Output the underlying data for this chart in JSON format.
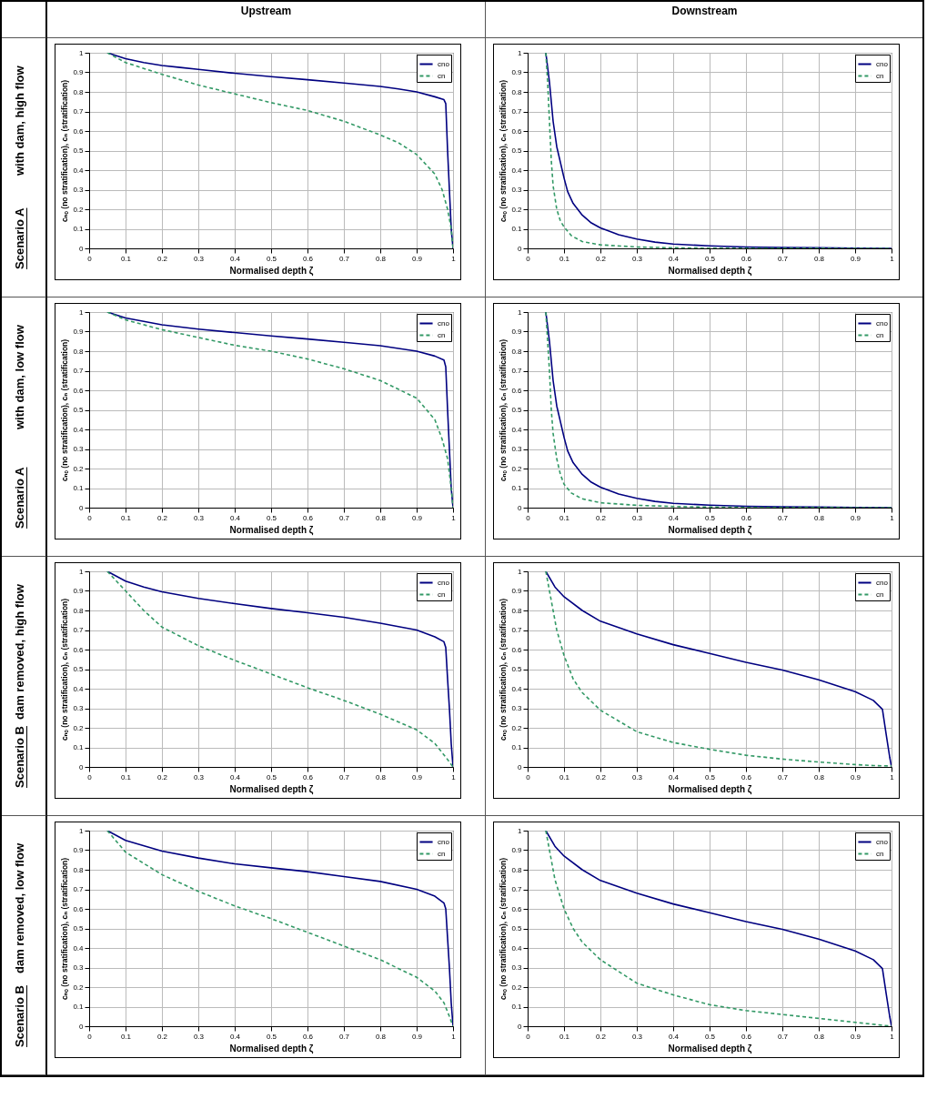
{
  "chart_data": [
    {
      "type": "line",
      "title": "Upstream",
      "annotations": [
        "Scenario A",
        "with dam, high flow"
      ],
      "xlabel": "Normalised depth ζ",
      "ylabel": "cₙₒ (no stratification), cₙ (stratification)",
      "xlim": [
        0,
        1
      ],
      "ylim": [
        0,
        1
      ],
      "xticks": [
        0,
        0.1,
        0.2,
        0.3,
        0.4,
        0.5,
        0.6,
        0.7,
        0.8,
        0.9,
        1
      ],
      "yticks": [
        0,
        0.1,
        0.2,
        0.3,
        0.4,
        0.5,
        0.6,
        0.7,
        0.8,
        0.9,
        1
      ],
      "grid": true,
      "legend": "top right",
      "series": [
        {
          "name": "cno",
          "color": "#000080",
          "line_style": "solid",
          "x": [
            0.05,
            0.1,
            0.15,
            0.2,
            0.25,
            0.3,
            0.4,
            0.5,
            0.6,
            0.7,
            0.8,
            0.85,
            0.9,
            0.95,
            0.975,
            0.98,
            0.985,
            0.99,
            0.995,
            1
          ],
          "values": [
            1,
            0.97,
            0.95,
            0.935,
            0.925,
            0.915,
            0.895,
            0.878,
            0.862,
            0.845,
            0.828,
            0.815,
            0.8,
            0.775,
            0.76,
            0.74,
            0.5,
            0.3,
            0.1,
            0
          ]
        },
        {
          "name": "cn",
          "color": "#339966",
          "line_style": "dashed",
          "x": [
            0.05,
            0.1,
            0.2,
            0.3,
            0.4,
            0.5,
            0.6,
            0.7,
            0.8,
            0.85,
            0.9,
            0.95,
            0.97,
            0.985,
            0.995,
            1
          ],
          "values": [
            1,
            0.95,
            0.89,
            0.835,
            0.79,
            0.745,
            0.705,
            0.65,
            0.58,
            0.54,
            0.48,
            0.38,
            0.3,
            0.2,
            0.1,
            0
          ]
        }
      ]
    },
    {
      "type": "line",
      "title": "Downstream",
      "xlabel": "Normalised depth ζ",
      "ylabel": "cₙₒ (no stratification), cₙ (stratification)",
      "xlim": [
        0,
        1
      ],
      "ylim": [
        0,
        1
      ],
      "xticks": [
        0,
        0.1,
        0.2,
        0.3,
        0.4,
        0.5,
        0.6,
        0.7,
        0.8,
        0.9,
        1
      ],
      "yticks": [
        0,
        0.1,
        0.2,
        0.3,
        0.4,
        0.5,
        0.6,
        0.7,
        0.8,
        0.9,
        1
      ],
      "grid": true,
      "legend": "top right",
      "series": [
        {
          "name": "cno",
          "color": "#000080",
          "line_style": "solid",
          "x": [
            0.05,
            0.06,
            0.07,
            0.08,
            0.09,
            0.1,
            0.11,
            0.125,
            0.15,
            0.175,
            0.2,
            0.25,
            0.3,
            0.35,
            0.4,
            0.5,
            0.6,
            0.7,
            0.8,
            0.9,
            1
          ],
          "values": [
            1,
            0.85,
            0.65,
            0.52,
            0.44,
            0.36,
            0.29,
            0.23,
            0.17,
            0.13,
            0.105,
            0.07,
            0.048,
            0.032,
            0.022,
            0.013,
            0.007,
            0.004,
            0.003,
            0.001,
            0
          ]
        },
        {
          "name": "cn",
          "color": "#339966",
          "line_style": "dashed",
          "x": [
            0.05,
            0.055,
            0.06,
            0.065,
            0.07,
            0.08,
            0.09,
            0.1,
            0.12,
            0.15,
            0.2,
            0.3,
            0.4,
            0.5,
            1
          ],
          "values": [
            1,
            0.85,
            0.65,
            0.45,
            0.32,
            0.2,
            0.14,
            0.11,
            0.065,
            0.035,
            0.018,
            0.007,
            0.003,
            0.001,
            0
          ]
        }
      ]
    },
    {
      "type": "line",
      "annotations": [
        "Scenario A",
        "with dam, low flow"
      ],
      "xlabel": "Normalised depth ζ",
      "ylabel": "cₙₒ (no stratification), cₙ (stratification)",
      "xlim": [
        0,
        1
      ],
      "ylim": [
        0,
        1
      ],
      "xticks": [
        0,
        0.1,
        0.2,
        0.3,
        0.4,
        0.5,
        0.6,
        0.7,
        0.8,
        0.9,
        1
      ],
      "yticks": [
        0,
        0.1,
        0.2,
        0.3,
        0.4,
        0.5,
        0.6,
        0.7,
        0.8,
        0.9,
        1
      ],
      "grid": true,
      "legend": "top right",
      "series": [
        {
          "name": "cno",
          "color": "#000080",
          "line_style": "solid",
          "x": [
            0.05,
            0.1,
            0.2,
            0.3,
            0.4,
            0.5,
            0.6,
            0.7,
            0.8,
            0.9,
            0.95,
            0.975,
            0.98,
            0.985,
            0.99,
            0.995,
            1
          ],
          "values": [
            1,
            0.97,
            0.935,
            0.913,
            0.895,
            0.878,
            0.862,
            0.845,
            0.828,
            0.8,
            0.775,
            0.755,
            0.72,
            0.5,
            0.3,
            0.1,
            0
          ]
        },
        {
          "name": "cn",
          "color": "#339966",
          "line_style": "dashed",
          "x": [
            0.05,
            0.1,
            0.2,
            0.3,
            0.4,
            0.5,
            0.6,
            0.7,
            0.8,
            0.9,
            0.95,
            0.97,
            0.985,
            0.995,
            1
          ],
          "values": [
            1,
            0.96,
            0.91,
            0.87,
            0.83,
            0.8,
            0.76,
            0.71,
            0.65,
            0.56,
            0.45,
            0.35,
            0.25,
            0.1,
            0
          ]
        }
      ]
    },
    {
      "type": "line",
      "xlabel": "Normalised depth ζ",
      "ylabel": "cₙₒ (no stratification), cₙ (stratification)",
      "xlim": [
        0,
        1
      ],
      "ylim": [
        0,
        1
      ],
      "xticks": [
        0,
        0.1,
        0.2,
        0.3,
        0.4,
        0.5,
        0.6,
        0.7,
        0.8,
        0.9,
        1
      ],
      "yticks": [
        0,
        0.1,
        0.2,
        0.3,
        0.4,
        0.5,
        0.6,
        0.7,
        0.8,
        0.9,
        1
      ],
      "grid": true,
      "legend": "top right",
      "series": [
        {
          "name": "cno",
          "color": "#000080",
          "line_style": "solid",
          "x": [
            0.05,
            0.06,
            0.07,
            0.08,
            0.09,
            0.1,
            0.11,
            0.125,
            0.15,
            0.175,
            0.2,
            0.25,
            0.3,
            0.35,
            0.4,
            0.5,
            0.6,
            0.7,
            0.8,
            0.9,
            1
          ],
          "values": [
            1,
            0.85,
            0.65,
            0.52,
            0.44,
            0.36,
            0.29,
            0.23,
            0.17,
            0.13,
            0.105,
            0.07,
            0.048,
            0.032,
            0.022,
            0.013,
            0.007,
            0.004,
            0.003,
            0.001,
            0
          ]
        },
        {
          "name": "cn",
          "color": "#339966",
          "line_style": "dashed",
          "x": [
            0.05,
            0.055,
            0.06,
            0.065,
            0.07,
            0.08,
            0.09,
            0.1,
            0.12,
            0.15,
            0.2,
            0.3,
            0.4,
            0.5,
            0.6,
            1
          ],
          "values": [
            1,
            0.85,
            0.7,
            0.5,
            0.38,
            0.25,
            0.17,
            0.12,
            0.075,
            0.045,
            0.025,
            0.012,
            0.006,
            0.003,
            0.001,
            0
          ]
        }
      ]
    },
    {
      "type": "line",
      "annotations": [
        "Scenario B",
        "dam removed, high flow"
      ],
      "xlabel": "Normalised depth ζ",
      "ylabel": "cₙₒ (no stratification), cₙ (stratification)",
      "xlim": [
        0,
        1
      ],
      "ylim": [
        0,
        1
      ],
      "xticks": [
        0,
        0.1,
        0.2,
        0.3,
        0.4,
        0.5,
        0.6,
        0.7,
        0.8,
        0.9,
        1
      ],
      "yticks": [
        0,
        0.1,
        0.2,
        0.3,
        0.4,
        0.5,
        0.6,
        0.7,
        0.8,
        0.9,
        1
      ],
      "grid": true,
      "legend": "top right",
      "series": [
        {
          "name": "cno",
          "color": "#000080",
          "line_style": "solid",
          "x": [
            0.05,
            0.1,
            0.15,
            0.2,
            0.3,
            0.4,
            0.5,
            0.6,
            0.7,
            0.8,
            0.9,
            0.95,
            0.975,
            0.98,
            0.985,
            0.99,
            0.995,
            1
          ],
          "values": [
            1,
            0.95,
            0.92,
            0.895,
            0.862,
            0.835,
            0.81,
            0.788,
            0.765,
            0.735,
            0.7,
            0.665,
            0.64,
            0.61,
            0.45,
            0.3,
            0.12,
            0
          ]
        },
        {
          "name": "cn",
          "color": "#339966",
          "line_style": "dashed",
          "x": [
            0.05,
            0.1,
            0.15,
            0.2,
            0.3,
            0.4,
            0.5,
            0.6,
            0.7,
            0.8,
            0.9,
            0.95,
            0.98,
            1
          ],
          "values": [
            1,
            0.9,
            0.8,
            0.715,
            0.62,
            0.545,
            0.475,
            0.405,
            0.34,
            0.27,
            0.19,
            0.12,
            0.05,
            0
          ]
        }
      ]
    },
    {
      "type": "line",
      "xlabel": "Normalised depth ζ",
      "ylabel": "cₙₒ (no stratification), cₙ (stratification)",
      "xlim": [
        0,
        1
      ],
      "ylim": [
        0,
        1
      ],
      "xticks": [
        0,
        0.1,
        0.2,
        0.3,
        0.4,
        0.5,
        0.6,
        0.7,
        0.8,
        0.9,
        1
      ],
      "yticks": [
        0,
        0.1,
        0.2,
        0.3,
        0.4,
        0.5,
        0.6,
        0.7,
        0.8,
        0.9,
        1
      ],
      "grid": true,
      "legend": "top right",
      "series": [
        {
          "name": "cno",
          "color": "#000080",
          "line_style": "solid",
          "x": [
            0.05,
            0.075,
            0.1,
            0.15,
            0.2,
            0.3,
            0.4,
            0.5,
            0.6,
            0.7,
            0.8,
            0.9,
            0.95,
            0.975,
            0.985,
            0.995,
            1
          ],
          "values": [
            1,
            0.92,
            0.87,
            0.8,
            0.745,
            0.68,
            0.625,
            0.58,
            0.535,
            0.495,
            0.445,
            0.385,
            0.34,
            0.295,
            0.17,
            0.05,
            0
          ]
        },
        {
          "name": "cn",
          "color": "#339966",
          "line_style": "dashed",
          "x": [
            0.05,
            0.06,
            0.07,
            0.08,
            0.1,
            0.125,
            0.15,
            0.2,
            0.3,
            0.4,
            0.5,
            0.6,
            0.7,
            0.8,
            0.9,
            0.95,
            1
          ],
          "values": [
            1,
            0.9,
            0.8,
            0.7,
            0.57,
            0.45,
            0.38,
            0.29,
            0.18,
            0.125,
            0.09,
            0.06,
            0.04,
            0.025,
            0.012,
            0.007,
            0.005
          ]
        }
      ]
    },
    {
      "type": "line",
      "annotations": [
        "Scenario B",
        "dam removed, low flow"
      ],
      "xlabel": "Normalised depth ζ",
      "ylabel": "cₙₒ (no stratification), cₙ (stratification)",
      "xlim": [
        0,
        1
      ],
      "ylim": [
        0,
        1
      ],
      "xticks": [
        0,
        0.1,
        0.2,
        0.3,
        0.4,
        0.5,
        0.6,
        0.7,
        0.8,
        0.9,
        1
      ],
      "yticks": [
        0,
        0.1,
        0.2,
        0.3,
        0.4,
        0.5,
        0.6,
        0.7,
        0.8,
        0.9,
        1
      ],
      "grid": true,
      "legend": "top right",
      "series": [
        {
          "name": "cno",
          "color": "#000080",
          "line_style": "solid",
          "x": [
            0.05,
            0.1,
            0.2,
            0.3,
            0.4,
            0.5,
            0.6,
            0.7,
            0.8,
            0.9,
            0.95,
            0.975,
            0.98,
            0.985,
            0.99,
            0.995,
            1
          ],
          "values": [
            1,
            0.95,
            0.895,
            0.86,
            0.83,
            0.81,
            0.79,
            0.765,
            0.74,
            0.7,
            0.665,
            0.63,
            0.6,
            0.45,
            0.3,
            0.12,
            0
          ]
        },
        {
          "name": "cn",
          "color": "#339966",
          "line_style": "dashed",
          "x": [
            0.05,
            0.1,
            0.2,
            0.3,
            0.4,
            0.5,
            0.6,
            0.7,
            0.8,
            0.9,
            0.95,
            0.975,
            0.99,
            1
          ],
          "values": [
            1,
            0.89,
            0.775,
            0.69,
            0.615,
            0.55,
            0.48,
            0.41,
            0.34,
            0.25,
            0.18,
            0.12,
            0.05,
            0
          ]
        }
      ]
    },
    {
      "type": "line",
      "xlabel": "Normalised depth ζ",
      "ylabel": "cₙₒ (no stratification), cₙ (stratification)",
      "xlim": [
        0,
        1
      ],
      "ylim": [
        0,
        1
      ],
      "xticks": [
        0,
        0.1,
        0.2,
        0.3,
        0.4,
        0.5,
        0.6,
        0.7,
        0.8,
        0.9,
        1
      ],
      "yticks": [
        0,
        0.1,
        0.2,
        0.3,
        0.4,
        0.5,
        0.6,
        0.7,
        0.8,
        0.9,
        1
      ],
      "grid": true,
      "legend": "top right",
      "series": [
        {
          "name": "cno",
          "color": "#000080",
          "line_style": "solid",
          "x": [
            0.05,
            0.075,
            0.1,
            0.15,
            0.2,
            0.3,
            0.4,
            0.5,
            0.6,
            0.7,
            0.8,
            0.9,
            0.95,
            0.975,
            0.985,
            0.995,
            1
          ],
          "values": [
            1,
            0.92,
            0.87,
            0.8,
            0.745,
            0.68,
            0.625,
            0.58,
            0.535,
            0.495,
            0.445,
            0.385,
            0.34,
            0.295,
            0.17,
            0.05,
            0
          ]
        },
        {
          "name": "cn",
          "color": "#339966",
          "line_style": "dashed",
          "x": [
            0.05,
            0.06,
            0.075,
            0.1,
            0.125,
            0.15,
            0.2,
            0.3,
            0.4,
            0.5,
            0.6,
            0.7,
            0.8,
            0.9,
            1
          ],
          "values": [
            1,
            0.9,
            0.75,
            0.6,
            0.5,
            0.43,
            0.34,
            0.22,
            0.16,
            0.11,
            0.08,
            0.06,
            0.04,
            0.02,
            0
          ]
        }
      ]
    }
  ]
}
